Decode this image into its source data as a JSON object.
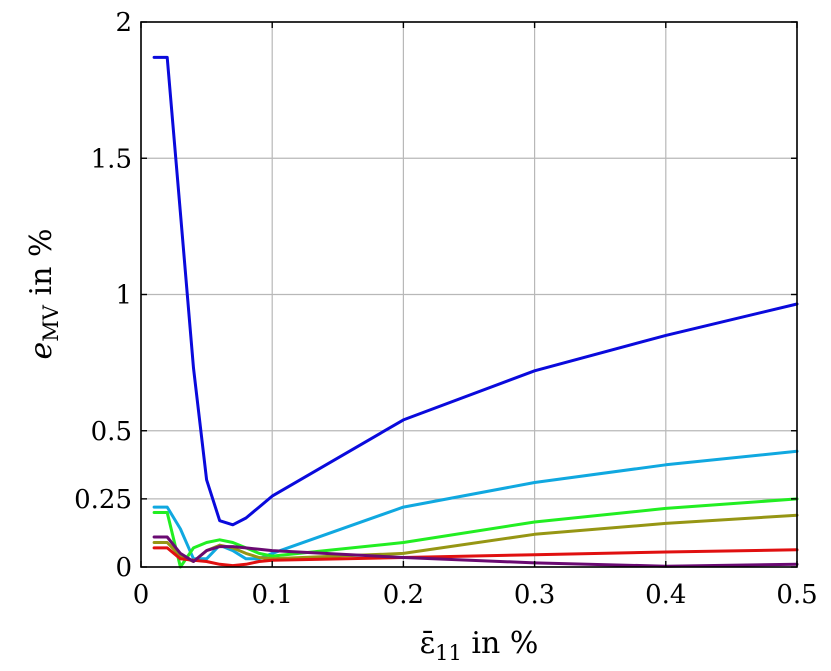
{
  "chart_data": {
    "type": "line",
    "title": "",
    "xlabel": {
      "main": "ε̄",
      "sub": "11",
      "suffix": " in %"
    },
    "ylabel": {
      "main": "e",
      "sub": "MV",
      "suffix": " in %"
    },
    "xlim": [
      0,
      0.5
    ],
    "ylim": [
      0,
      2
    ],
    "grid": true,
    "xticks": [
      0,
      0.1,
      0.2,
      0.3,
      0.4,
      0.5
    ],
    "xtick_labels": [
      "0",
      "0.1",
      "0.2",
      "0.3",
      "0.4",
      "0.5"
    ],
    "yticks": [
      0,
      0.25,
      0.5,
      1,
      1.5,
      2
    ],
    "ytick_labels": [
      "0",
      "0.25",
      "0.5",
      "1",
      "1.5",
      "2"
    ],
    "series": [
      {
        "color": "#0a0adc",
        "x": [
          0.01,
          0.02,
          0.03,
          0.04,
          0.05,
          0.06,
          0.07,
          0.08,
          0.09,
          0.1,
          0.2,
          0.3,
          0.4,
          0.5
        ],
        "y": [
          1.87,
          1.87,
          1.3,
          0.73,
          0.32,
          0.17,
          0.155,
          0.18,
          0.22,
          0.26,
          0.54,
          0.72,
          0.85,
          0.965
        ]
      },
      {
        "color": "#10a8e0",
        "x": [
          0.01,
          0.02,
          0.03,
          0.04,
          0.05,
          0.06,
          0.07,
          0.08,
          0.09,
          0.1,
          0.2,
          0.3,
          0.4,
          0.5
        ],
        "y": [
          0.22,
          0.22,
          0.14,
          0.03,
          0.03,
          0.08,
          0.06,
          0.03,
          0.03,
          0.05,
          0.22,
          0.31,
          0.375,
          0.425
        ]
      },
      {
        "color": "#22ee22",
        "x": [
          0.01,
          0.02,
          0.03,
          0.04,
          0.05,
          0.06,
          0.07,
          0.08,
          0.09,
          0.1,
          0.2,
          0.3,
          0.4,
          0.5
        ],
        "y": [
          0.2,
          0.2,
          0.0,
          0.07,
          0.09,
          0.1,
          0.09,
          0.07,
          0.05,
          0.04,
          0.09,
          0.165,
          0.215,
          0.25
        ]
      },
      {
        "color": "#969614",
        "x": [
          0.01,
          0.02,
          0.03,
          0.04,
          0.05,
          0.06,
          0.07,
          0.08,
          0.09,
          0.1,
          0.2,
          0.3,
          0.4,
          0.5
        ],
        "y": [
          0.09,
          0.09,
          0.04,
          0.02,
          0.06,
          0.08,
          0.07,
          0.05,
          0.035,
          0.03,
          0.05,
          0.12,
          0.16,
          0.19
        ]
      },
      {
        "color": "#e01010",
        "x": [
          0.01,
          0.02,
          0.03,
          0.04,
          0.05,
          0.06,
          0.07,
          0.08,
          0.09,
          0.1,
          0.2,
          0.3,
          0.4,
          0.5
        ],
        "y": [
          0.07,
          0.07,
          0.03,
          0.025,
          0.02,
          0.01,
          0.005,
          0.01,
          0.02,
          0.025,
          0.035,
          0.045,
          0.055,
          0.063
        ]
      },
      {
        "color": "#6a0a72",
        "x": [
          0.01,
          0.02,
          0.03,
          0.04,
          0.05,
          0.06,
          0.07,
          0.08,
          0.09,
          0.1,
          0.2,
          0.3,
          0.4,
          0.5
        ],
        "y": [
          0.11,
          0.11,
          0.05,
          0.02,
          0.06,
          0.075,
          0.075,
          0.07,
          0.065,
          0.06,
          0.035,
          0.015,
          0.003,
          0.01
        ]
      }
    ]
  }
}
